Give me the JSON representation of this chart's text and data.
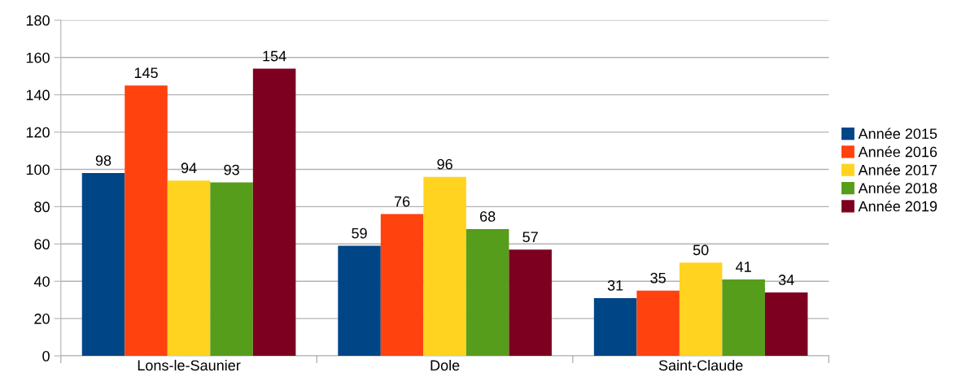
{
  "chart_data": {
    "type": "bar",
    "categories": [
      "Lons-le-Saunier",
      "Dole",
      "Saint-Claude"
    ],
    "series": [
      {
        "name": "Année 2015",
        "color": "#004586",
        "values": [
          98,
          59,
          31
        ]
      },
      {
        "name": "Année 2016",
        "color": "#ff420e",
        "values": [
          145,
          76,
          35
        ]
      },
      {
        "name": "Année 2017",
        "color": "#ffd320",
        "values": [
          94,
          96,
          50
        ]
      },
      {
        "name": "Année 2018",
        "color": "#579d1c",
        "values": [
          93,
          68,
          41
        ]
      },
      {
        "name": "Année 2019",
        "color": "#7e0021",
        "values": [
          154,
          57,
          34
        ]
      }
    ],
    "ylim": [
      0,
      180
    ],
    "yticks": [
      0,
      20,
      40,
      60,
      80,
      100,
      120,
      140,
      160,
      180
    ],
    "grid": "y",
    "legend": "right",
    "data_labels": true
  }
}
